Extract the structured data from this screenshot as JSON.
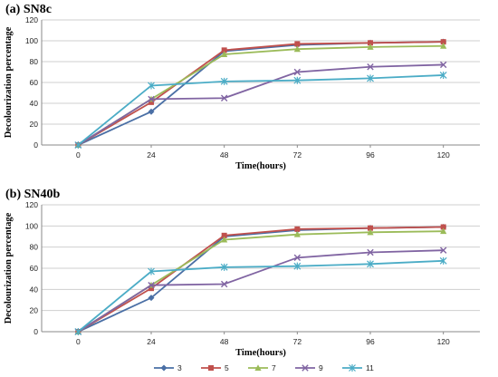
{
  "chart_data": [
    {
      "type": "line",
      "title": "(a) SN8c",
      "xlabel": "Time(hours)",
      "ylabel": "Decolourization percentage",
      "categories": [
        "0",
        "24",
        "48",
        "72",
        "96",
        "120"
      ],
      "ylim": [
        0,
        120
      ],
      "yticks": [
        0,
        20,
        40,
        60,
        80,
        100,
        120
      ],
      "grid": true,
      "series": [
        {
          "name": "3",
          "color": "#4a6fa5",
          "marker": "diamond",
          "values": [
            0,
            32,
            90,
            96,
            98,
            99
          ]
        },
        {
          "name": "5",
          "color": "#c0504d",
          "marker": "square",
          "values": [
            0,
            41,
            91,
            97,
            98,
            99
          ]
        },
        {
          "name": "7",
          "color": "#9bbb59",
          "marker": "triangle",
          "values": [
            0,
            44,
            87,
            92,
            94,
            95
          ]
        },
        {
          "name": "9",
          "color": "#8064a2",
          "marker": "x",
          "values": [
            0,
            44,
            45,
            70,
            75,
            77
          ]
        },
        {
          "name": "11",
          "color": "#4bacc6",
          "marker": "star",
          "values": [
            0,
            57,
            61,
            62,
            64,
            67
          ]
        }
      ]
    },
    {
      "type": "line",
      "title": "(b) SN40b",
      "xlabel": "Time(hours)",
      "ylabel": "Decolourization percentage",
      "categories": [
        "0",
        "24",
        "48",
        "72",
        "96",
        "120"
      ],
      "ylim": [
        0,
        120
      ],
      "yticks": [
        0,
        20,
        40,
        60,
        80,
        100,
        120
      ],
      "grid": true,
      "legend_position": "bottom",
      "series": [
        {
          "name": "3",
          "color": "#4a6fa5",
          "marker": "diamond",
          "values": [
            0,
            32,
            90,
            96,
            98,
            99
          ]
        },
        {
          "name": "5",
          "color": "#c0504d",
          "marker": "square",
          "values": [
            0,
            41,
            91,
            97,
            98,
            99
          ]
        },
        {
          "name": "7",
          "color": "#9bbb59",
          "marker": "triangle",
          "values": [
            0,
            44,
            87,
            92,
            94,
            95
          ]
        },
        {
          "name": "9",
          "color": "#8064a2",
          "marker": "x",
          "values": [
            0,
            44,
            45,
            70,
            75,
            77
          ]
        },
        {
          "name": "11",
          "color": "#4bacc6",
          "marker": "star",
          "values": [
            0,
            57,
            61,
            62,
            64,
            67
          ]
        }
      ]
    }
  ]
}
